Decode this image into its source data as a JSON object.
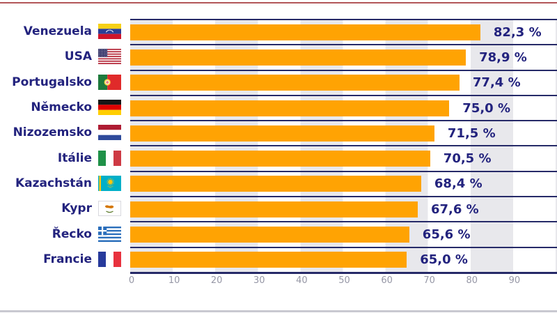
{
  "chart_data": {
    "type": "bar",
    "orientation": "horizontal",
    "title": "",
    "categories": [
      "Venezuela",
      "USA",
      "Portugalsko",
      "Německo",
      "Nizozemsko",
      "Itálie",
      "Kazachstán",
      "Kypr",
      "Řecko",
      "Francie"
    ],
    "values": [
      82.3,
      78.9,
      77.4,
      75.0,
      71.5,
      70.5,
      68.4,
      67.6,
      65.6,
      65.0
    ],
    "value_labels": [
      "82,3 %",
      "78,9 %",
      "77,4 %",
      "75,0 %",
      "71,5 %",
      "70,5 %",
      "68,4 %",
      "67,6 %",
      "65,6 %",
      "65,0 %"
    ],
    "flags": [
      "venezuela",
      "usa",
      "portugal",
      "germany",
      "netherlands",
      "italy",
      "kazakhstan",
      "cyprus",
      "greece",
      "france"
    ],
    "x_ticks": [
      "0",
      "10",
      "20",
      "30",
      "40",
      "50",
      "60",
      "70",
      "80",
      "90"
    ],
    "xlim": [
      0,
      100
    ],
    "xlabel": "",
    "ylabel": "",
    "legend": "none",
    "grid": "alternating vertical decade bands",
    "colors": {
      "bar": "#FFA303",
      "text": "#23237E",
      "separator": "#262A68",
      "band": "#E8E8EC",
      "tick": "#9697A6",
      "top_rule": "#B25659",
      "bottom_rule": "#C8C8D0"
    }
  }
}
